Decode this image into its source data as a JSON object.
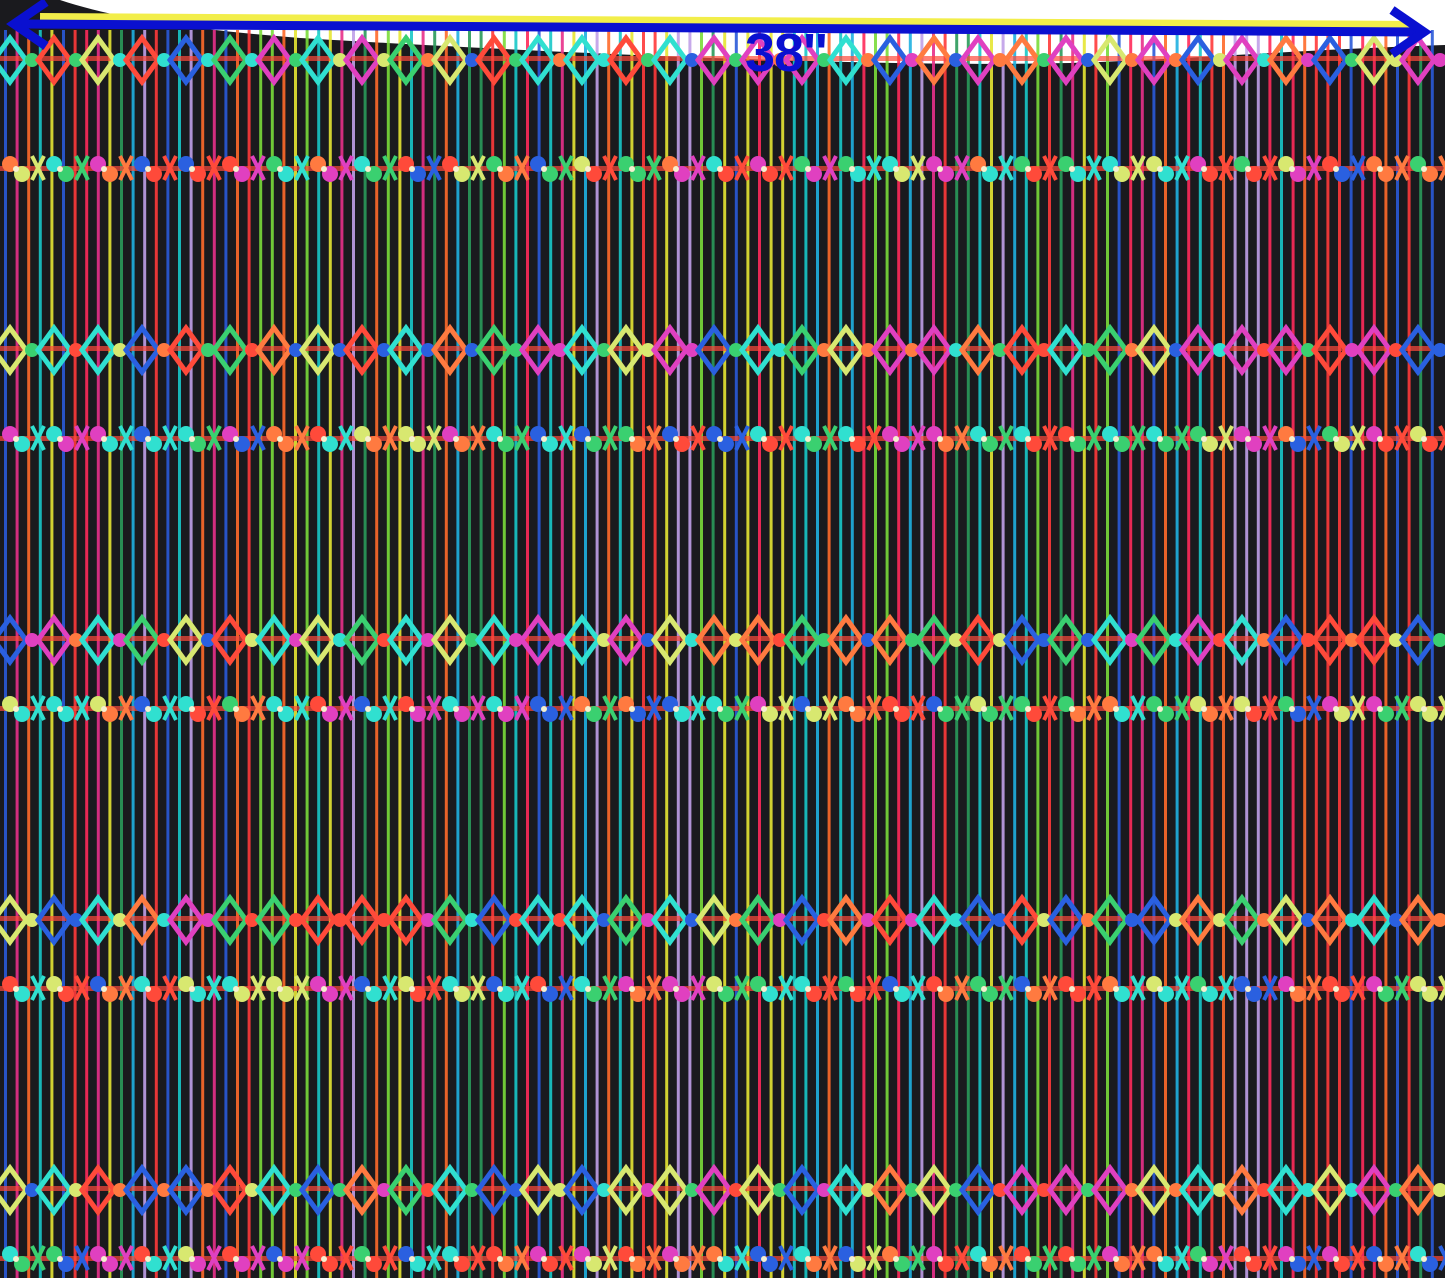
{
  "image": {
    "subject": "textile",
    "measurement": {
      "label": "38''",
      "arrow_color": "#0a10d0",
      "highlight_color": "#f2ee4a"
    },
    "colors": {
      "base": "#1a1a1e",
      "stripes": [
        "#ff3a3a",
        "#ff6a2a",
        "#18c8c8",
        "#2a9a5a",
        "#e6e633",
        "#2a5ad8",
        "#e8308a",
        "#c0a0e8",
        "#1fb0e0",
        "#ff2a5a",
        "#7adc3a"
      ],
      "motifs": [
        "#30e0d0",
        "#ff4a3a",
        "#3ad070",
        "#e040c0",
        "#2a60e0",
        "#d8e870",
        "#ff7a40"
      ]
    }
  }
}
